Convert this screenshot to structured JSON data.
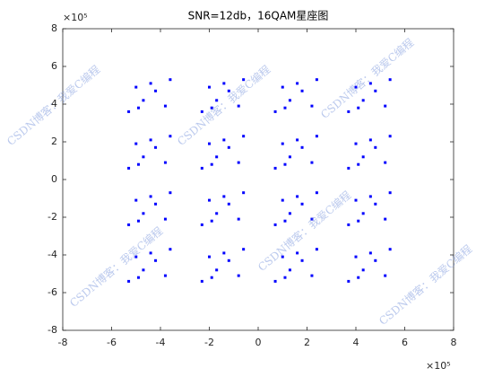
{
  "chart_data": {
    "type": "scatter",
    "title": "SNR=12db，16QAM星座图",
    "x_exponent": "×10⁵",
    "y_exponent": "×10⁵",
    "watermark": "CSDN博客：我爱C编程",
    "color": "#0000ff",
    "grid": false,
    "xlim": [
      -8,
      8
    ],
    "ylim": [
      -8,
      8
    ],
    "xticks": [
      -8,
      -6,
      -4,
      -2,
      0,
      2,
      4,
      6,
      8
    ],
    "yticks": [
      -8,
      -6,
      -4,
      -2,
      0,
      2,
      4,
      6,
      8
    ],
    "x": [
      -4.2,
      -5.0,
      -3.8,
      -4.7,
      -3.6,
      -5.3,
      -4.4,
      -4.9,
      -1.2,
      -2.0,
      -0.8,
      -1.7,
      -0.6,
      -2.3,
      -1.4,
      -1.9,
      1.8,
      1.0,
      2.2,
      1.3,
      2.4,
      0.7,
      1.6,
      1.1,
      4.8,
      4.0,
      5.2,
      4.3,
      5.4,
      3.7,
      4.6,
      4.1,
      -4.2,
      -5.0,
      -3.8,
      -4.7,
      -3.6,
      -5.3,
      -4.4,
      -4.9,
      -1.2,
      -2.0,
      -0.8,
      -1.7,
      -0.6,
      -2.3,
      -1.4,
      -1.9,
      1.8,
      1.0,
      2.2,
      1.3,
      2.4,
      0.7,
      1.6,
      1.1,
      4.8,
      4.0,
      5.2,
      4.3,
      5.4,
      3.7,
      4.6,
      4.1,
      -4.2,
      -5.0,
      -3.8,
      -4.7,
      -3.6,
      -5.3,
      -4.4,
      -4.9,
      -1.2,
      -2.0,
      -0.8,
      -1.7,
      -0.6,
      -2.3,
      -1.4,
      -1.9,
      1.8,
      1.0,
      2.2,
      1.3,
      2.4,
      0.7,
      1.6,
      1.1,
      4.8,
      4.0,
      5.2,
      4.3,
      5.4,
      3.7,
      4.6,
      4.1,
      -4.2,
      -5.0,
      -3.8,
      -4.7,
      -3.6,
      -5.3,
      -4.4,
      -4.9,
      -1.2,
      -2.0,
      -0.8,
      -1.7,
      -0.6,
      -2.3,
      -1.4,
      -1.9,
      1.8,
      1.0,
      2.2,
      1.3,
      2.4,
      0.7,
      1.6,
      1.1,
      4.8,
      4.0,
      5.2,
      4.3,
      5.4,
      3.7,
      4.6,
      4.1
    ],
    "y": [
      4.7,
      4.9,
      3.9,
      4.2,
      5.3,
      3.6,
      5.1,
      3.8,
      4.7,
      4.9,
      3.9,
      4.2,
      5.3,
      3.6,
      5.1,
      3.8,
      4.7,
      4.9,
      3.9,
      4.2,
      5.3,
      3.6,
      5.1,
      3.8,
      4.7,
      4.9,
      3.9,
      4.2,
      5.3,
      3.6,
      5.1,
      3.8,
      1.7,
      1.9,
      0.9,
      1.2,
      2.3,
      0.6,
      2.1,
      0.8,
      1.7,
      1.9,
      0.9,
      1.2,
      2.3,
      0.6,
      2.1,
      0.8,
      1.7,
      1.9,
      0.9,
      1.2,
      2.3,
      0.6,
      2.1,
      0.8,
      1.7,
      1.9,
      0.9,
      1.2,
      2.3,
      0.6,
      2.1,
      0.8,
      -1.3,
      -1.1,
      -2.1,
      -1.8,
      -0.7,
      -2.4,
      -0.9,
      -2.2,
      -1.3,
      -1.1,
      -2.1,
      -1.8,
      -0.7,
      -2.4,
      -0.9,
      -2.2,
      -1.3,
      -1.1,
      -2.1,
      -1.8,
      -0.7,
      -2.4,
      -0.9,
      -2.2,
      -1.3,
      -1.1,
      -2.1,
      -1.8,
      -0.7,
      -2.4,
      -0.9,
      -2.2,
      -4.3,
      -4.1,
      -5.1,
      -4.8,
      -3.7,
      -5.4,
      -3.9,
      -5.2,
      -4.3,
      -4.1,
      -5.1,
      -4.8,
      -3.7,
      -5.4,
      -3.9,
      -5.2,
      -4.3,
      -4.1,
      -5.1,
      -4.8,
      -3.7,
      -5.4,
      -3.9,
      -5.2,
      -4.3,
      -4.1,
      -5.1,
      -4.8,
      -3.7,
      -5.4,
      -3.9,
      -5.2
    ]
  }
}
